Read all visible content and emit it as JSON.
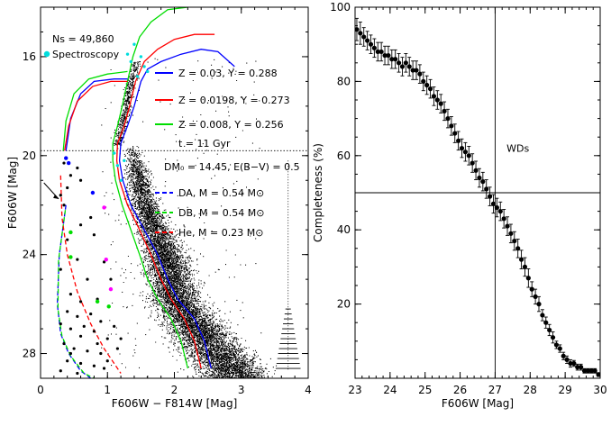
{
  "chart_data": [
    {
      "type": "scatter",
      "title": "",
      "xlabel": "F606W − F814W [Mag]",
      "ylabel": "F606W [Mag]",
      "xlim": [
        0,
        4
      ],
      "ylim": [
        29,
        14
      ],
      "xticks": [
        0,
        1,
        2,
        3,
        4
      ],
      "yticks": [
        16,
        20,
        24,
        28
      ],
      "xtick_labels": [
        "0",
        "1",
        "2",
        "3",
        "4"
      ],
      "ytick_labels": [
        "16",
        "20",
        "24",
        "28"
      ],
      "stats_text": "Ns = 49,860",
      "legend_spectroscopy": "Spectroscopy",
      "isochrones": [
        {
          "name": "Z = 0.03, Y = 0.288",
          "color": "#0000ff",
          "style": "solid",
          "points": [
            [
              2.55,
              28.6
            ],
            [
              2.45,
              27.5
            ],
            [
              2.3,
              26.6
            ],
            [
              2.05,
              25.8
            ],
            [
              1.9,
              25.0
            ],
            [
              1.75,
              24.0
            ],
            [
              1.55,
              23.0
            ],
            [
              1.35,
              22.0
            ],
            [
              1.23,
              21.0
            ],
            [
              1.18,
              20.2
            ],
            [
              1.2,
              19.5
            ],
            [
              1.3,
              18.8
            ],
            [
              1.4,
              18.0
            ],
            [
              1.5,
              17.0
            ],
            [
              1.6,
              16.5
            ],
            [
              1.8,
              16.2
            ],
            [
              2.1,
              15.9
            ],
            [
              2.4,
              15.7
            ],
            [
              2.65,
              15.8
            ],
            [
              2.9,
              16.4
            ]
          ]
        },
        {
          "name": "Z = 0.0198, Y = 0.273",
          "color": "#ff0000",
          "style": "solid",
          "points": [
            [
              2.4,
              28.6
            ],
            [
              2.3,
              27.5
            ],
            [
              2.15,
              26.6
            ],
            [
              1.95,
              25.8
            ],
            [
              1.8,
              25.0
            ],
            [
              1.65,
              24.0
            ],
            [
              1.48,
              23.0
            ],
            [
              1.3,
              22.0
            ],
            [
              1.18,
              21.0
            ],
            [
              1.14,
              20.2
            ],
            [
              1.15,
              19.5
            ],
            [
              1.25,
              18.8
            ],
            [
              1.33,
              18.0
            ],
            [
              1.42,
              17.0
            ],
            [
              1.55,
              16.2
            ],
            [
              1.75,
              15.7
            ],
            [
              2.0,
              15.3
            ],
            [
              2.3,
              15.1
            ],
            [
              2.6,
              15.1
            ]
          ]
        },
        {
          "name": "Z = 0.008, Y = 0.256",
          "color": "#00dd00",
          "style": "solid",
          "points": [
            [
              2.2,
              28.6
            ],
            [
              2.1,
              27.5
            ],
            [
              1.95,
              26.6
            ],
            [
              1.75,
              25.8
            ],
            [
              1.6,
              25.0
            ],
            [
              1.48,
              24.0
            ],
            [
              1.35,
              23.0
            ],
            [
              1.22,
              22.0
            ],
            [
              1.12,
              21.0
            ],
            [
              1.08,
              20.2
            ],
            [
              1.08,
              19.5
            ],
            [
              1.15,
              18.8
            ],
            [
              1.22,
              18.0
            ],
            [
              1.3,
              17.0
            ],
            [
              1.38,
              16.0
            ],
            [
              1.48,
              15.2
            ],
            [
              1.65,
              14.6
            ],
            [
              1.9,
              14.1
            ],
            [
              2.2,
              14.0
            ]
          ]
        },
        {
          "name": "Z = 0.03, Y = 0.288 (HB)",
          "color": "#0000ff",
          "style": "solid",
          "points": [
            [
              0.38,
              19.8
            ],
            [
              0.45,
              18.5
            ],
            [
              0.6,
              17.5
            ],
            [
              0.8,
              17.0
            ],
            [
              1.1,
              16.9
            ],
            [
              1.3,
              16.9
            ]
          ]
        },
        {
          "name": "Z = 0.0198, Y = 0.273 (HB)",
          "color": "#ff0000",
          "style": "solid",
          "points": [
            [
              0.36,
              19.8
            ],
            [
              0.42,
              18.8
            ],
            [
              0.55,
              17.8
            ],
            [
              0.78,
              17.2
            ],
            [
              1.05,
              17.0
            ],
            [
              1.3,
              17.0
            ]
          ]
        },
        {
          "name": "Z = 0.008, Y = 0.256 (HB)",
          "color": "#00dd00",
          "style": "solid",
          "points": [
            [
              0.34,
              19.8
            ],
            [
              0.38,
              18.6
            ],
            [
              0.5,
              17.5
            ],
            [
              0.72,
              16.9
            ],
            [
              1.0,
              16.7
            ],
            [
              1.3,
              16.6
            ]
          ]
        }
      ],
      "wd_tracks": [
        {
          "name": "DA, M = 0.54 M⊙",
          "color": "#0000ff",
          "style": "dashed",
          "points": [
            [
              0.38,
              22.0
            ],
            [
              0.28,
              24.0
            ],
            [
              0.25,
              26.0
            ],
            [
              0.3,
              27.2
            ],
            [
              0.42,
              28.0
            ],
            [
              0.6,
              28.7
            ],
            [
              0.75,
              29.0
            ]
          ]
        },
        {
          "name": "DB, M = 0.54 M⊙",
          "color": "#00dd00",
          "style": "dashed",
          "points": [
            [
              0.37,
              22.2
            ],
            [
              0.27,
              24.2
            ],
            [
              0.26,
              26.2
            ],
            [
              0.32,
              27.3
            ],
            [
              0.45,
              28.1
            ],
            [
              0.65,
              28.8
            ],
            [
              0.8,
              29.0
            ]
          ]
        },
        {
          "name": "He, M = 0.23 M⊙",
          "color": "#ff0000",
          "style": "dashed",
          "points": [
            [
              0.3,
              20.8
            ],
            [
              0.32,
              22.5
            ],
            [
              0.4,
              24.0
            ],
            [
              0.55,
              25.5
            ],
            [
              0.75,
              26.8
            ],
            [
              0.95,
              27.8
            ],
            [
              1.2,
              28.8
            ]
          ]
        }
      ],
      "legend_text": [
        "t = 11 Gyr",
        "DM₀ = 14.45, E(B−V) = 0.5"
      ],
      "wd_points_black": [
        [
          0.3,
          21.6
        ],
        [
          0.35,
          22.0
        ],
        [
          0.4,
          21.3
        ],
        [
          0.45,
          20.8
        ],
        [
          0.55,
          20.5
        ],
        [
          0.6,
          21.0
        ],
        [
          0.75,
          22.5
        ],
        [
          0.35,
          20.3
        ],
        [
          0.6,
          22.8
        ],
        [
          0.8,
          23.2
        ],
        [
          0.4,
          23.4
        ],
        [
          0.3,
          24.6
        ],
        [
          0.55,
          24.2
        ],
        [
          0.95,
          24.3
        ],
        [
          0.7,
          25.0
        ],
        [
          1.05,
          25.0
        ],
        [
          0.45,
          25.6
        ],
        [
          0.6,
          25.9
        ],
        [
          0.85,
          25.8
        ],
        [
          0.4,
          26.3
        ],
        [
          0.55,
          26.5
        ],
        [
          0.75,
          26.4
        ],
        [
          0.9,
          26.7
        ],
        [
          1.1,
          26.9
        ],
        [
          0.3,
          26.8
        ],
        [
          0.45,
          27.0
        ],
        [
          0.6,
          27.3
        ],
        [
          0.8,
          27.1
        ],
        [
          1.0,
          27.4
        ],
        [
          0.35,
          27.6
        ],
        [
          0.5,
          27.8
        ],
        [
          0.7,
          27.9
        ],
        [
          0.9,
          28.0
        ],
        [
          1.15,
          27.8
        ],
        [
          0.4,
          28.3
        ],
        [
          0.6,
          28.4
        ],
        [
          0.8,
          28.5
        ],
        [
          1.0,
          28.3
        ],
        [
          0.3,
          28.7
        ],
        [
          0.55,
          28.8
        ],
        [
          0.45,
          28.0
        ],
        [
          0.65,
          26.9
        ],
        [
          0.85,
          27.6
        ],
        [
          1.2,
          27.4
        ],
        [
          0.95,
          28.6
        ]
      ],
      "wd_points_blue": [
        [
          0.38,
          20.1
        ],
        [
          0.42,
          20.3
        ],
        [
          0.78,
          21.5
        ]
      ],
      "wd_points_magenta": [
        [
          0.95,
          22.1
        ],
        [
          0.98,
          24.2
        ],
        [
          1.05,
          25.4
        ]
      ],
      "wd_points_green": [
        [
          0.45,
          23.1
        ],
        [
          0.45,
          24.1
        ],
        [
          0.85,
          25.9
        ],
        [
          1.02,
          26.1
        ]
      ],
      "wd_points_cyan": [
        [
          1.35,
          16.2
        ],
        [
          1.5,
          16.0
        ],
        [
          1.55,
          16.4
        ],
        [
          1.45,
          16.8
        ],
        [
          1.6,
          16.6
        ],
        [
          1.3,
          15.9
        ],
        [
          1.1,
          19.9
        ],
        [
          1.15,
          20.4
        ],
        [
          1.2,
          21.0
        ],
        [
          1.25,
          20.2
        ],
        [
          1.4,
          15.5
        ]
      ],
      "completeness_ticks_mag": [
        26.2,
        26.4,
        26.6,
        26.8,
        27.0,
        27.2,
        27.4,
        27.6,
        27.8,
        28.0,
        28.2,
        28.4,
        28.6
      ],
      "limit_line_y": 19.8
    },
    {
      "type": "line",
      "title": "",
      "xlabel": "F606W [Mag]",
      "ylabel": "Completeness (%)",
      "xlim": [
        23,
        30
      ],
      "ylim": [
        0,
        100
      ],
      "xticks": [
        23,
        24,
        25,
        26,
        27,
        28,
        29,
        30
      ],
      "yticks": [
        20,
        40,
        60,
        80,
        100
      ],
      "xtick_labels": [
        "23",
        "24",
        "25",
        "26",
        "27",
        "28",
        "29",
        "30"
      ],
      "ytick_labels": [
        "20",
        "40",
        "60",
        "80",
        "100"
      ],
      "annotation": "WDs",
      "vline_x": 27.0,
      "hline_y": 50,
      "series": [
        {
          "name": "Completeness",
          "x": [
            23.05,
            23.15,
            23.25,
            23.35,
            23.45,
            23.55,
            23.65,
            23.75,
            23.85,
            23.95,
            24.05,
            24.15,
            24.25,
            24.35,
            24.45,
            24.55,
            24.65,
            24.75,
            24.85,
            24.95,
            25.05,
            25.15,
            25.25,
            25.35,
            25.45,
            25.55,
            25.65,
            25.75,
            25.85,
            25.95,
            26.05,
            26.15,
            26.25,
            26.35,
            26.45,
            26.55,
            26.65,
            26.75,
            26.85,
            26.95,
            27.05,
            27.15,
            27.25,
            27.35,
            27.45,
            27.55,
            27.65,
            27.75,
            27.85,
            27.95,
            28.05,
            28.15,
            28.25,
            28.35,
            28.45,
            28.55,
            28.65,
            28.75,
            28.85,
            28.95,
            29.05,
            29.15,
            29.25,
            29.35,
            29.45,
            29.55,
            29.65,
            29.75,
            29.85,
            29.95
          ],
          "y": [
            94,
            93,
            92,
            91,
            90,
            89,
            88,
            88,
            87,
            87,
            86,
            86,
            85,
            84,
            85,
            84,
            83,
            83,
            82,
            80,
            79,
            78,
            76,
            75,
            74,
            72,
            70,
            68,
            66,
            64,
            62,
            61,
            60,
            58,
            56,
            54,
            53,
            51,
            49,
            47,
            46,
            45,
            43,
            41,
            39,
            37,
            35,
            32,
            30,
            27,
            24,
            22,
            20,
            17,
            15,
            13,
            11,
            9,
            8,
            6,
            5,
            4,
            4,
            3,
            3,
            2,
            2,
            2,
            2,
            1
          ],
          "err": [
            3,
            3,
            2.5,
            2.5,
            2.5,
            2.5,
            2.5,
            2.5,
            2.5,
            2.5,
            2.5,
            2.5,
            2.5,
            2.5,
            2.5,
            2.5,
            2.5,
            2.5,
            2.5,
            2.5,
            2.5,
            2.5,
            2.5,
            2.5,
            2.5,
            2.5,
            2.5,
            2.5,
            2.5,
            2.5,
            2.5,
            2.5,
            2.5,
            2.5,
            2.5,
            2.5,
            2.5,
            2.5,
            2.5,
            2.5,
            2.5,
            2.5,
            2.5,
            2.5,
            2.5,
            2.5,
            2.5,
            2.5,
            2.5,
            2.5,
            2,
            2,
            2,
            1.5,
            1.5,
            1.5,
            1.5,
            1,
            1,
            1,
            1,
            1,
            0.8,
            0.8,
            0.8,
            0.6,
            0.6,
            0.6,
            0.6,
            0.5
          ]
        }
      ]
    }
  ]
}
